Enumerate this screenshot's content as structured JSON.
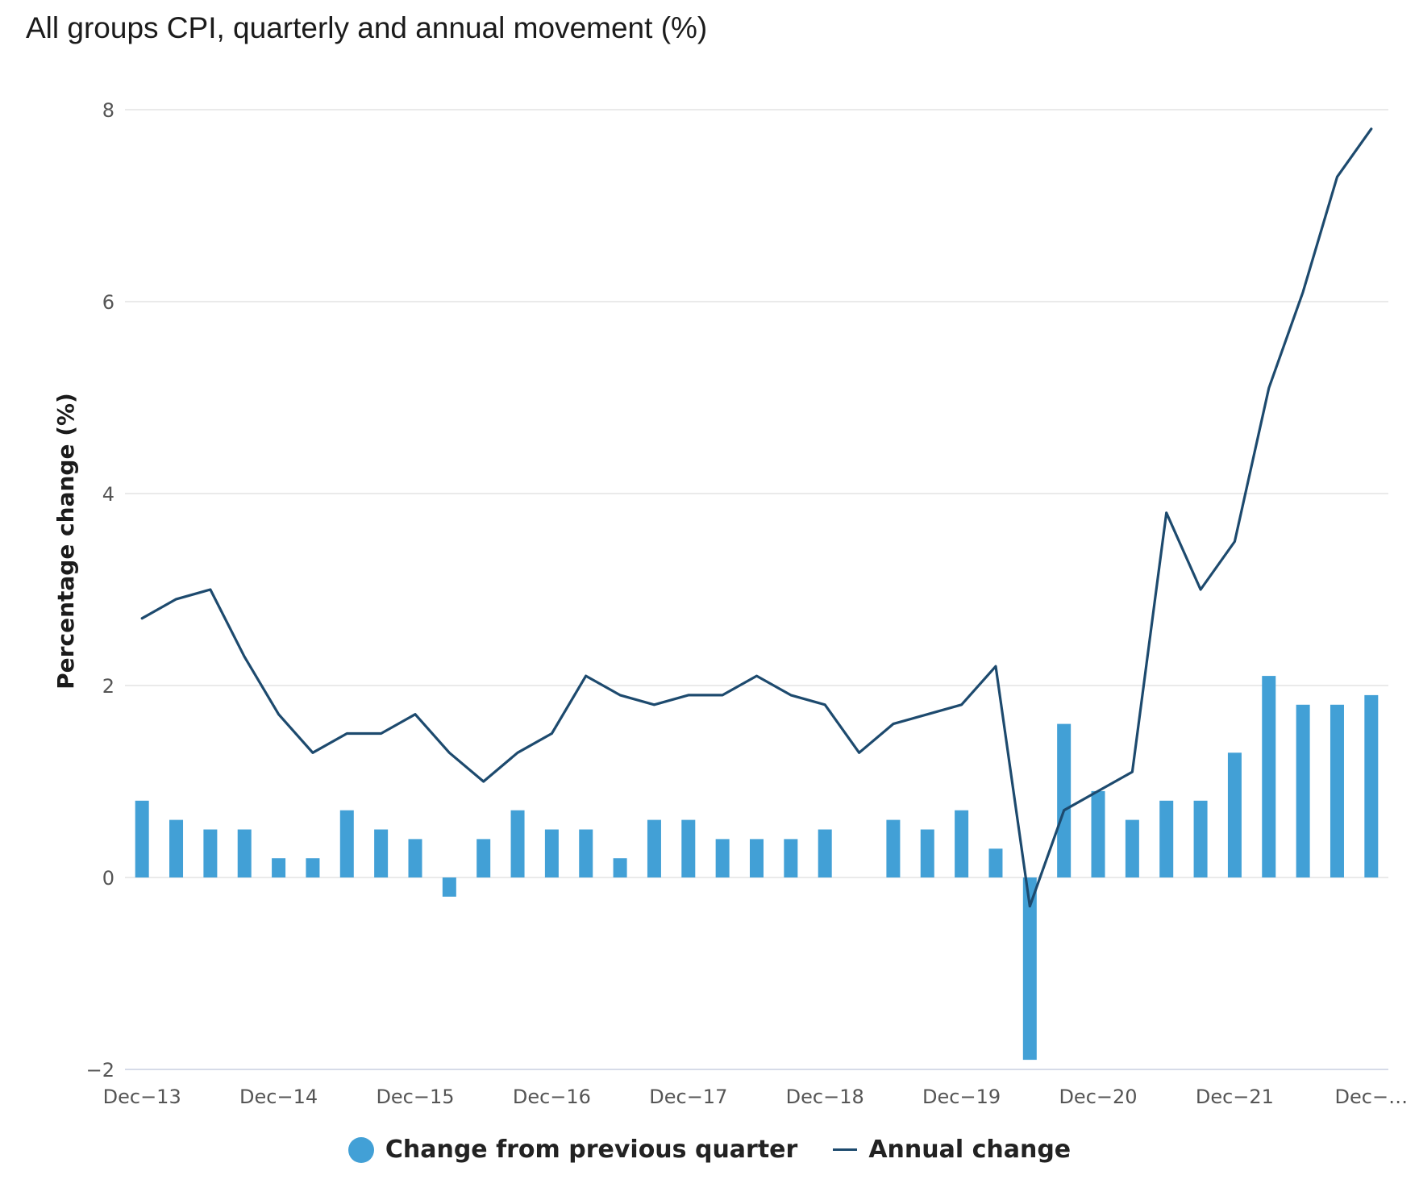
{
  "title": "All groups CPI, quarterly and annual movement (%)",
  "chart_data": {
    "type": "bar",
    "title": "All groups CPI, quarterly and annual movement (%)",
    "xlabel": "",
    "ylabel": "Percentage change (%)",
    "ylim": [
      -2,
      8
    ],
    "yticks": [
      -2,
      0,
      2,
      4,
      6,
      8
    ],
    "ytick_labels": [
      "−2",
      "0",
      "2",
      "4",
      "6",
      "8"
    ],
    "x": [
      "Dec-13",
      "Mar-14",
      "Jun-14",
      "Sep-14",
      "Dec-14",
      "Mar-15",
      "Jun-15",
      "Sep-15",
      "Dec-15",
      "Mar-16",
      "Jun-16",
      "Sep-16",
      "Dec-16",
      "Mar-17",
      "Jun-17",
      "Sep-17",
      "Dec-17",
      "Mar-18",
      "Jun-18",
      "Sep-18",
      "Dec-18",
      "Mar-19",
      "Jun-19",
      "Sep-19",
      "Dec-19",
      "Mar-20",
      "Jun-20",
      "Sep-20",
      "Dec-20",
      "Mar-21",
      "Jun-21",
      "Sep-21",
      "Dec-21",
      "Mar-22",
      "Jun-22",
      "Sep-22",
      "Dec-22"
    ],
    "x_tick_labels": [
      "Dec−13",
      "Dec−14",
      "Dec−15",
      "Dec−16",
      "Dec−17",
      "Dec−18",
      "Dec−19",
      "Dec−20",
      "Dec−21",
      "Dec−…"
    ],
    "x_tick_indices": [
      0,
      4,
      8,
      12,
      16,
      20,
      24,
      28,
      32,
      36
    ],
    "grid": true,
    "legend_position": "bottom-center",
    "series": [
      {
        "name": "Change from previous quarter",
        "type": "bar",
        "color": "#42a0d6",
        "values": [
          0.8,
          0.6,
          0.5,
          0.5,
          0.2,
          0.2,
          0.7,
          0.5,
          0.4,
          -0.2,
          0.4,
          0.7,
          0.5,
          0.5,
          0.2,
          0.6,
          0.6,
          0.4,
          0.4,
          0.4,
          0.5,
          0.0,
          0.6,
          0.5,
          0.7,
          0.3,
          -1.9,
          1.6,
          0.9,
          0.6,
          0.8,
          0.8,
          1.3,
          2.1,
          1.8,
          1.8,
          1.9
        ]
      },
      {
        "name": "Annual change",
        "type": "line",
        "color": "#1d4a6e",
        "values": [
          2.7,
          2.9,
          3.0,
          2.3,
          1.7,
          1.3,
          1.5,
          1.5,
          1.7,
          1.3,
          1.0,
          1.3,
          1.5,
          2.1,
          1.9,
          1.8,
          1.9,
          1.9,
          2.1,
          1.9,
          1.8,
          1.3,
          1.6,
          1.7,
          1.8,
          2.2,
          -0.3,
          0.7,
          0.9,
          1.1,
          3.8,
          3.0,
          3.5,
          5.1,
          6.1,
          7.3,
          7.8
        ]
      }
    ]
  }
}
